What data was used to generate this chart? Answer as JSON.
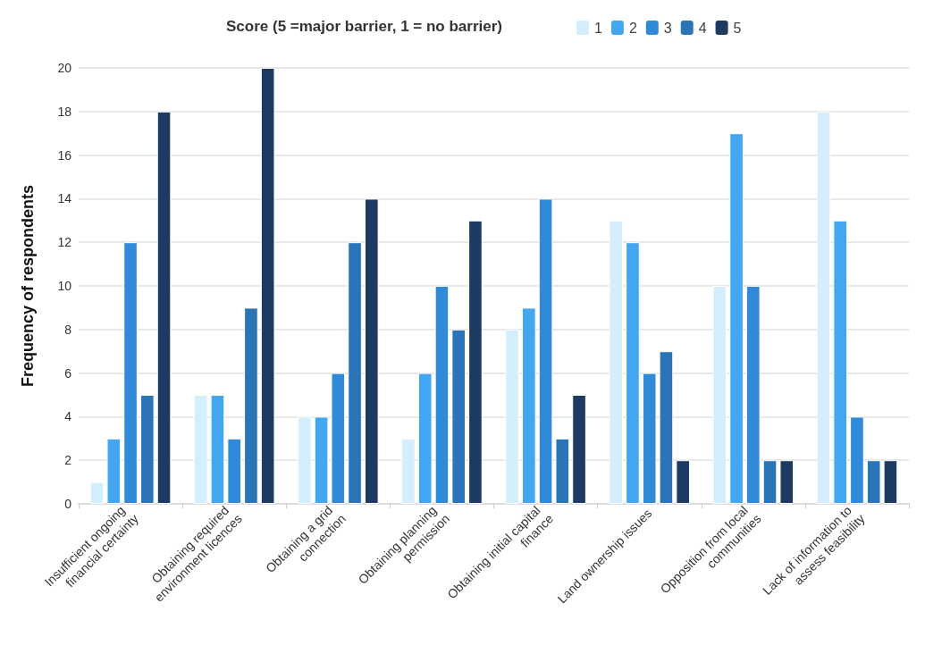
{
  "chart_data": {
    "type": "bar",
    "legend_title": "Score (5 =major barrier, 1 = no barrier)",
    "ylabel": "Frequency of respondents",
    "categories": [
      "Insufficient ongoing financial certainty",
      "Obtaining required environment licences",
      "Obtaining a grid connection",
      "Obtaining planning permission",
      "Obtaining initial capital finance",
      "Land ownership issues",
      "Opposition from local communities",
      "Lack of information to assess feasibility"
    ],
    "series": [
      {
        "name": "1",
        "color": "#d4eefd",
        "values": [
          1,
          5,
          4,
          3,
          8,
          13,
          10,
          18
        ]
      },
      {
        "name": "2",
        "color": "#42a6f0",
        "values": [
          3,
          5,
          4,
          6,
          9,
          12,
          17,
          13
        ]
      },
      {
        "name": "3",
        "color": "#318ad7",
        "values": [
          12,
          3,
          6,
          10,
          14,
          6,
          10,
          4
        ]
      },
      {
        "name": "4",
        "color": "#2b74b7",
        "values": [
          5,
          9,
          12,
          8,
          3,
          7,
          2,
          2
        ]
      },
      {
        "name": "5",
        "color": "#1d3a60",
        "values": [
          18,
          20,
          14,
          13,
          5,
          2,
          2,
          2
        ]
      }
    ],
    "ylim": [
      0,
      20
    ],
    "yticks": [
      0,
      2,
      4,
      6,
      8,
      10,
      12,
      14,
      16,
      18,
      20
    ],
    "grid": "y",
    "legend": "top"
  }
}
